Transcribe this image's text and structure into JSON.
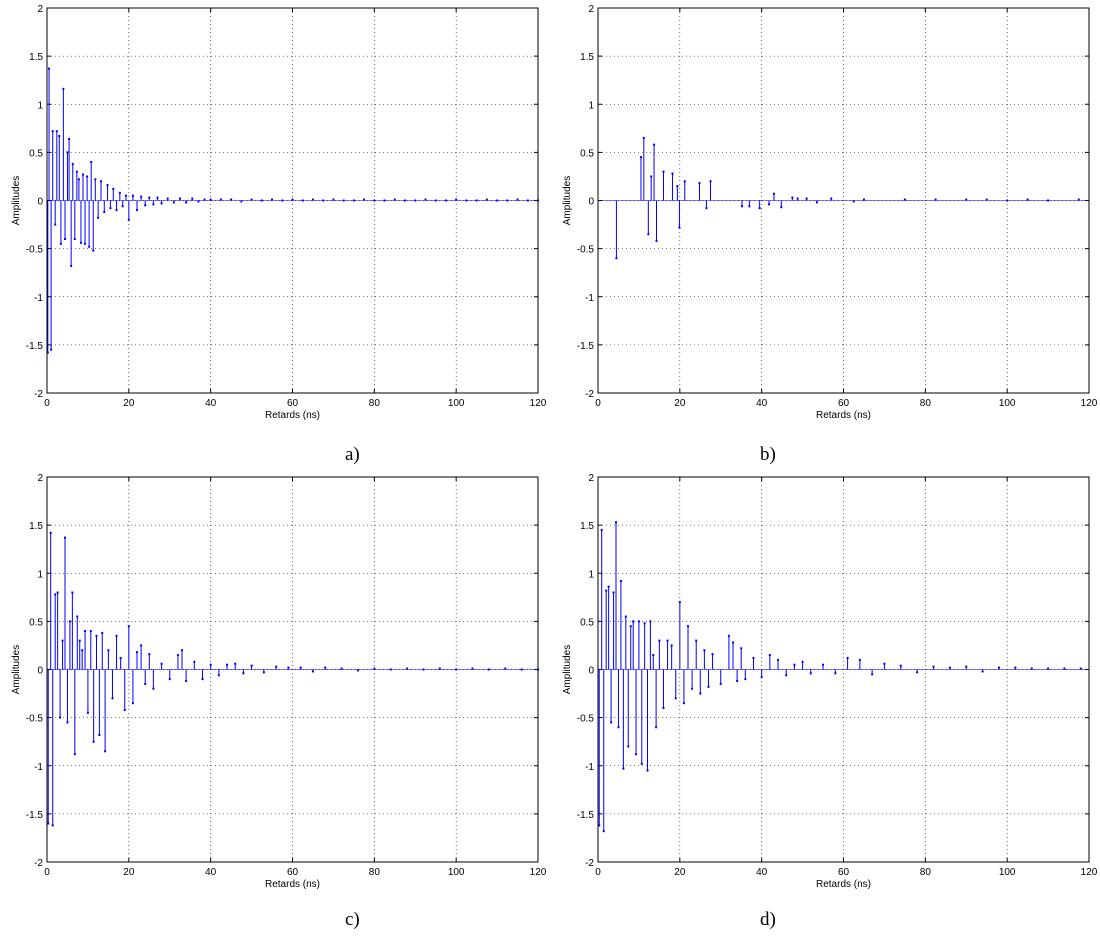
{
  "chart_data": [
    {
      "type": "stem",
      "caption": "a)",
      "xlabel": "Retards (ns)",
      "ylabel": "Amplitudes",
      "xlim": [
        0,
        120
      ],
      "ylim": [
        -2,
        2
      ],
      "xticks": [
        0,
        20,
        40,
        60,
        80,
        100,
        120
      ],
      "yticks": [
        -2,
        -1.5,
        -1,
        -0.5,
        0,
        0.5,
        1,
        1.5,
        2
      ],
      "grid": true,
      "x": [
        0.2,
        0.5,
        1.0,
        1.4,
        2.0,
        2.4,
        3.0,
        3.4,
        4.0,
        4.4,
        5.0,
        5.4,
        5.9,
        6.3,
        6.8,
        7.3,
        7.8,
        8.3,
        8.8,
        9.3,
        9.8,
        10.3,
        10.8,
        11.3,
        11.8,
        12.5,
        13.2,
        14.0,
        14.8,
        15.5,
        16.2,
        17.0,
        17.8,
        18.5,
        19.3,
        20.0,
        21.0,
        22.0,
        23.0,
        24.0,
        25.0,
        26.0,
        27.0,
        28.0,
        29.5,
        31.0,
        32.5,
        34.0,
        35.5,
        37.0,
        38.5,
        40.0,
        42.5,
        45.0,
        47.5,
        50.0,
        52.5,
        55.0,
        57.5,
        60.0,
        62.5,
        65.0,
        67.5,
        70.0,
        72.5,
        75.0,
        77.5,
        80.0,
        82.5,
        85.0,
        87.5,
        90.0,
        92.5,
        95.0,
        97.5,
        100.0,
        102.5,
        105.0,
        107.5,
        110.0,
        112.5,
        115.0,
        117.5,
        120.0
      ],
      "y": [
        -1.58,
        1.37,
        -1.55,
        0.72,
        -0.25,
        0.72,
        0.67,
        -0.45,
        1.16,
        -0.4,
        0.5,
        0.64,
        -0.68,
        0.38,
        -0.4,
        0.3,
        0.22,
        -0.44,
        0.27,
        -0.45,
        0.25,
        -0.48,
        0.4,
        -0.52,
        0.22,
        -0.18,
        0.2,
        -0.12,
        0.16,
        -0.08,
        0.12,
        -0.1,
        0.08,
        -0.06,
        0.05,
        -0.2,
        0.05,
        -0.1,
        0.04,
        -0.05,
        0.03,
        -0.04,
        0.03,
        -0.03,
        0.02,
        -0.02,
        0.02,
        -0.02,
        0.02,
        -0.01,
        0.01,
        0.01,
        0.01,
        0.01,
        -0.01,
        0.01,
        0.0,
        0.01,
        0.0,
        0.01,
        0.0,
        0.01,
        0.0,
        0.01,
        0.0,
        0.0,
        0.01,
        0.0,
        0.0,
        0.01,
        0.0,
        0.0,
        0.01,
        0.0,
        0.0,
        0.01,
        0.0,
        0.0,
        0.01,
        0.0,
        0.0,
        0.01,
        0.0,
        0.0
      ]
    },
    {
      "type": "stem",
      "caption": "b)",
      "xlabel": "Retards (ns)",
      "ylabel": "Amplitudes",
      "xlim": [
        0,
        120
      ],
      "ylim": [
        -2,
        2
      ],
      "xticks": [
        0,
        20,
        40,
        60,
        80,
        100,
        120
      ],
      "yticks": [
        -2,
        -1.5,
        -1,
        -0.5,
        0,
        0.5,
        1,
        1.5,
        2
      ],
      "grid": true,
      "x": [
        4.5,
        10.5,
        11.2,
        12.3,
        13.0,
        13.7,
        14.3,
        16.0,
        18.2,
        19.4,
        19.9,
        21.2,
        24.8,
        26.5,
        27.5,
        35.2,
        37.0,
        39.5,
        41.8,
        43.0,
        44.8,
        47.5,
        48.8,
        51.0,
        53.5,
        57.0,
        62.5,
        65.0,
        75.0,
        82.5,
        90.0,
        95.0,
        100.0,
        105.0,
        110.0,
        117.5
      ],
      "y": [
        -0.6,
        0.45,
        0.65,
        -0.35,
        0.25,
        0.58,
        -0.42,
        0.3,
        0.28,
        0.15,
        -0.28,
        0.2,
        0.18,
        -0.08,
        0.2,
        -0.06,
        -0.06,
        -0.08,
        -0.04,
        0.07,
        -0.07,
        0.03,
        0.02,
        0.02,
        -0.02,
        0.02,
        -0.01,
        0.01,
        0.01,
        0.01,
        0.01,
        0.01,
        0.0,
        0.01,
        0.0,
        0.01
      ]
    },
    {
      "type": "stem",
      "caption": "c)",
      "xlabel": "Retards (ns)",
      "ylabel": "Amplitudes",
      "xlim": [
        0,
        120
      ],
      "ylim": [
        -2,
        2
      ],
      "xticks": [
        0,
        20,
        40,
        60,
        80,
        100,
        120
      ],
      "yticks": [
        -2,
        -1.5,
        -1,
        -0.5,
        0,
        0.5,
        1,
        1.5,
        2
      ],
      "grid": true,
      "x": [
        0.3,
        0.9,
        1.4,
        2.0,
        2.6,
        3.2,
        3.8,
        4.4,
        5.0,
        5.6,
        6.2,
        6.8,
        7.4,
        8.0,
        8.6,
        9.3,
        10.0,
        10.7,
        11.4,
        12.1,
        12.8,
        13.5,
        14.2,
        15.0,
        16.0,
        17.0,
        18.0,
        19.0,
        20.0,
        21.0,
        22.0,
        23.0,
        24.0,
        25.0,
        26.0,
        28.0,
        30.0,
        32.0,
        33.0,
        34.0,
        36.0,
        38.0,
        40.0,
        42.0,
        44.0,
        46.0,
        48.0,
        50.0,
        53.0,
        56.0,
        59.0,
        62.0,
        65.0,
        68.0,
        72.0,
        76.0,
        80.0,
        84.0,
        88.0,
        92.0,
        96.0,
        100.0,
        104.0,
        108.0,
        112.0,
        116.0,
        120.0
      ],
      "y": [
        -1.6,
        1.42,
        -1.62,
        0.78,
        0.8,
        -0.5,
        0.3,
        1.37,
        -0.55,
        0.5,
        0.8,
        -0.88,
        0.55,
        0.3,
        0.2,
        0.4,
        -0.45,
        0.4,
        -0.75,
        0.35,
        -0.68,
        0.38,
        -0.85,
        0.2,
        -0.3,
        0.35,
        0.12,
        -0.42,
        0.45,
        -0.35,
        0.18,
        0.25,
        -0.15,
        0.16,
        -0.2,
        0.06,
        -0.1,
        0.15,
        0.2,
        -0.12,
        0.08,
        -0.1,
        0.05,
        -0.06,
        0.05,
        0.06,
        -0.04,
        0.04,
        -0.03,
        0.03,
        0.02,
        0.02,
        -0.02,
        0.02,
        0.01,
        -0.01,
        0.01,
        0.0,
        0.01,
        0.0,
        0.01,
        0.0,
        0.01,
        0.0,
        0.01,
        0.0,
        0.0
      ]
    },
    {
      "type": "stem",
      "caption": "d)",
      "xlabel": "Retards (ns)",
      "ylabel": "Amplitudes",
      "xlim": [
        0,
        120
      ],
      "ylim": [
        -2,
        2
      ],
      "xticks": [
        0,
        20,
        40,
        60,
        80,
        100,
        120
      ],
      "yticks": [
        -2,
        -1.5,
        -1,
        -0.5,
        0,
        0.5,
        1,
        1.5,
        2
      ],
      "grid": true,
      "x": [
        0.3,
        0.9,
        1.4,
        2.0,
        2.6,
        3.2,
        3.8,
        4.4,
        5.0,
        5.6,
        6.2,
        6.8,
        7.4,
        8.0,
        8.6,
        9.3,
        10.0,
        10.7,
        11.4,
        12.1,
        12.8,
        13.5,
        14.2,
        15.0,
        16.0,
        17.0,
        18.0,
        19.0,
        20.0,
        21.0,
        22.0,
        23.0,
        24.0,
        25.0,
        26.0,
        27.0,
        28.0,
        30.0,
        32.0,
        33.0,
        34.0,
        35.0,
        36.0,
        38.0,
        40.0,
        42.0,
        44.0,
        46.0,
        48.0,
        50.0,
        52.0,
        55.0,
        58.0,
        61.0,
        64.0,
        67.0,
        70.0,
        74.0,
        78.0,
        82.0,
        86.0,
        90.0,
        94.0,
        98.0,
        102.0,
        106.0,
        110.0,
        114.0,
        118.0
      ],
      "y": [
        -1.62,
        1.45,
        -1.68,
        0.82,
        0.86,
        -0.55,
        0.8,
        1.53,
        -0.6,
        0.92,
        -1.03,
        0.55,
        -0.8,
        0.45,
        0.5,
        -0.88,
        0.5,
        -0.98,
        0.48,
        -1.05,
        0.5,
        0.15,
        -0.6,
        0.3,
        -0.4,
        0.3,
        0.25,
        -0.3,
        0.7,
        -0.35,
        0.45,
        -0.2,
        0.3,
        -0.25,
        0.2,
        -0.18,
        0.16,
        -0.15,
        0.35,
        0.28,
        -0.12,
        0.22,
        -0.1,
        0.12,
        -0.08,
        0.15,
        0.1,
        -0.06,
        0.05,
        0.08,
        -0.04,
        0.05,
        -0.04,
        0.12,
        0.1,
        -0.05,
        0.06,
        0.04,
        -0.03,
        0.03,
        0.02,
        0.03,
        -0.02,
        0.02,
        0.02,
        0.01,
        0.01,
        0.01,
        0.01
      ]
    }
  ]
}
